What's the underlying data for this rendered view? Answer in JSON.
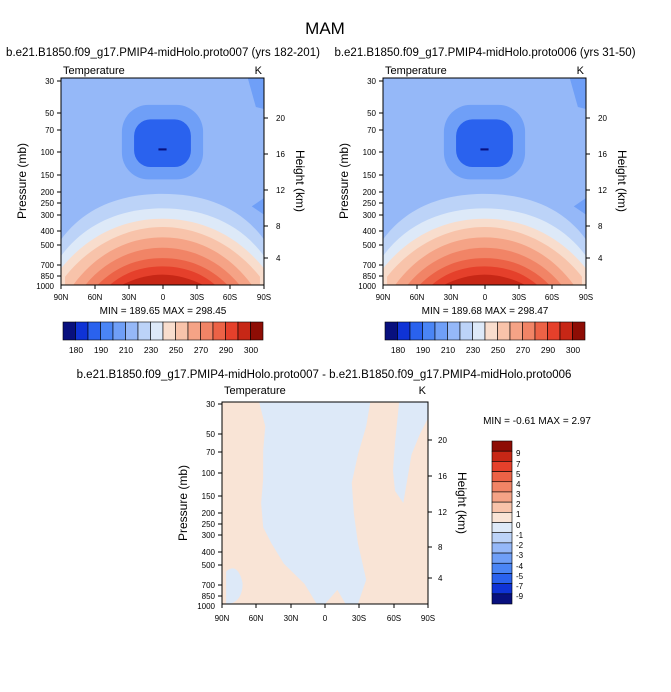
{
  "figure": {
    "title": "MAM"
  },
  "chart_data": [
    {
      "type": "contour",
      "title": "b.e21.B1850.f09_g17.PMIP4-midHolo.proto007 (yrs 182-201)",
      "left_label": "Temperature",
      "right_label": "K",
      "ylabel": "Pressure (mb)",
      "ylabel_right": "Height (km)",
      "x_ticks": [
        "90N",
        "60N",
        "30N",
        "0",
        "30S",
        "60S",
        "90S"
      ],
      "y_ticks": [
        "30",
        "50",
        "70",
        "100",
        "150",
        "200",
        "250",
        "300",
        "400",
        "500",
        "700",
        "850",
        "1000"
      ],
      "height_ticks": [
        "20",
        "16",
        "12",
        "8",
        "4"
      ],
      "stats": "MIN = 189.65   MAX = 298.45",
      "colorbar_ticks": [
        "180",
        "190",
        "210",
        "230",
        "250",
        "270",
        "290",
        "300"
      ]
    },
    {
      "type": "contour",
      "title": "b.e21.B1850.f09_g17.PMIP4-midHolo.proto006 (yrs 31-50)",
      "left_label": "Temperature",
      "right_label": "K",
      "ylabel": "Pressure (mb)",
      "ylabel_right": "Height (km)",
      "x_ticks": [
        "90N",
        "60N",
        "30N",
        "0",
        "30S",
        "60S",
        "90S"
      ],
      "y_ticks": [
        "30",
        "50",
        "70",
        "100",
        "150",
        "200",
        "250",
        "300",
        "400",
        "500",
        "700",
        "850",
        "1000"
      ],
      "height_ticks": [
        "20",
        "16",
        "12",
        "8",
        "4"
      ],
      "stats": "MIN = 189.68   MAX = 298.47",
      "colorbar_ticks": [
        "180",
        "190",
        "210",
        "230",
        "250",
        "270",
        "290",
        "300"
      ]
    },
    {
      "type": "contour",
      "title": "b.e21.B1850.f09_g17.PMIP4-midHolo.proto007 - b.e21.B1850.f09_g17.PMIP4-midHolo.proto006",
      "left_label": "Temperature",
      "right_label": "K",
      "ylabel": "Pressure (mb)",
      "ylabel_right": "Height (km)",
      "x_ticks": [
        "90N",
        "60N",
        "30N",
        "0",
        "30S",
        "60S",
        "90S"
      ],
      "y_ticks": [
        "30",
        "50",
        "70",
        "100",
        "150",
        "200",
        "250",
        "300",
        "400",
        "500",
        "700",
        "850",
        "1000"
      ],
      "height_ticks": [
        "20",
        "16",
        "12",
        "8",
        "4"
      ],
      "stats": "MIN =  -0.61   MAX =  2.97",
      "colorbar_ticks": [
        "9",
        "7",
        "5",
        "4",
        "3",
        "2",
        "1",
        "0",
        "-1",
        "-2",
        "-3",
        "-4",
        "-5",
        "-7",
        "-9"
      ]
    }
  ],
  "colors": {
    "abs_scale": [
      "#08107e",
      "#0f33d6",
      "#2a62ee",
      "#4a85f5",
      "#6f9ff7",
      "#95b8f8",
      "#bcd3f8",
      "#dde9f8",
      "#f8ddcd",
      "#f8c3aa",
      "#f5a386",
      "#f18466",
      "#ec6246",
      "#e5402b",
      "#c72716",
      "#8e0d05"
    ],
    "diff_scale": [
      "#8e0d05",
      "#c72716",
      "#e5402b",
      "#ec6246",
      "#f18466",
      "#f5a386",
      "#f8c3aa",
      "#f9e4d6",
      "#dde9f8",
      "#bcd3f8",
      "#95b8f8",
      "#6f9ff7",
      "#4a85f5",
      "#2a62ee",
      "#0f33d6",
      "#08107e"
    ]
  }
}
